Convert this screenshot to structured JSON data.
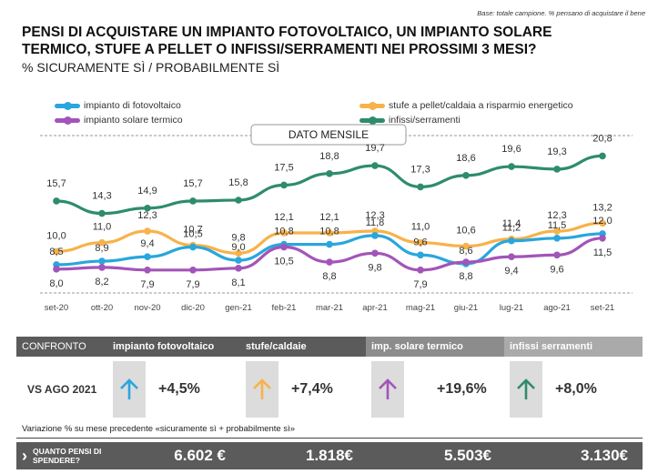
{
  "base_note": "Base: totale campione. % pensano di acquistare il bene",
  "title": "PENSI DI ACQUISTARE UN IMPIANTO FOTOVOLTAICO, UN IMPIANTO SOLARE TERMICO,  STUFE A PELLET O INFISSI/SERRAMENTI NEI PROSSIMI 3 MESI?",
  "subtitle": "% SICURAMENTE SÌ / PROBABILMENTE SÌ",
  "legend": {
    "fotovoltaico": "impianto di fotovoltaico",
    "stufe": "stufe a pellet/caldaia a risparmio energetico",
    "solare": "impianto solare termico",
    "infissi": "infissi/serramenti"
  },
  "colors": {
    "fotovoltaico": "#29a6dd",
    "stufe": "#f7b24a",
    "solare": "#a255b8",
    "infissi": "#2e8c6c",
    "dark_header": "#5b5b5b",
    "mid_header": "#8c8c8c",
    "light_header": "#aaaaaa"
  },
  "chart_data": {
    "type": "line",
    "badge": "DATO MENSILE",
    "categories": [
      "set-20",
      "ott-20",
      "nov-20",
      "dic-20",
      "gen-21",
      "feb-21",
      "mar-21",
      "apr-21",
      "mag-21",
      "giu-21",
      "lug-21",
      "ago-21",
      "set-21"
    ],
    "series": [
      {
        "key": "infissi",
        "name": "infissi/serramenti",
        "values": [
          15.7,
          14.3,
          14.9,
          15.7,
          15.8,
          17.5,
          18.8,
          19.7,
          17.3,
          18.6,
          19.6,
          19.3,
          20.8
        ]
      },
      {
        "key": "stufe",
        "name": "stufe a pellet/caldaia a risparmio energetico",
        "values": [
          10.0,
          11.0,
          12.3,
          10.7,
          9.8,
          12.1,
          12.1,
          12.3,
          11.0,
          10.6,
          11.4,
          12.3,
          13.2
        ]
      },
      {
        "key": "fotovoltaico",
        "name": "impianto di fotovoltaico",
        "values": [
          8.5,
          8.9,
          9.4,
          10.5,
          9.0,
          10.8,
          10.8,
          11.8,
          9.6,
          8.6,
          11.2,
          11.5,
          12.0
        ]
      },
      {
        "key": "solare",
        "name": "impianto solare termico",
        "values": [
          8.0,
          8.2,
          7.9,
          7.9,
          8.1,
          10.5,
          8.8,
          9.8,
          7.9,
          8.8,
          9.4,
          9.6,
          11.5
        ]
      }
    ],
    "ylim": [
      5,
      23
    ]
  },
  "table": {
    "confronto": "CONFRONTO",
    "headers": [
      "impianto fotovoltaico",
      "stufe/caldaie",
      "imp. solare termico",
      "infissi serramenti"
    ],
    "vs_label": "VS AGO 2021",
    "changes": [
      "+4,5%",
      "+7,4%",
      "+19,6%",
      "+8,0%"
    ],
    "note": "Variazione % su mese precedente «sicuramente sì + probabilmente sì»",
    "spend_label": "QUANTO PENSI DI SPENDERE?",
    "spend_values": [
      "6.602 €",
      "1.818€",
      "5.503€",
      "3.130€"
    ]
  }
}
